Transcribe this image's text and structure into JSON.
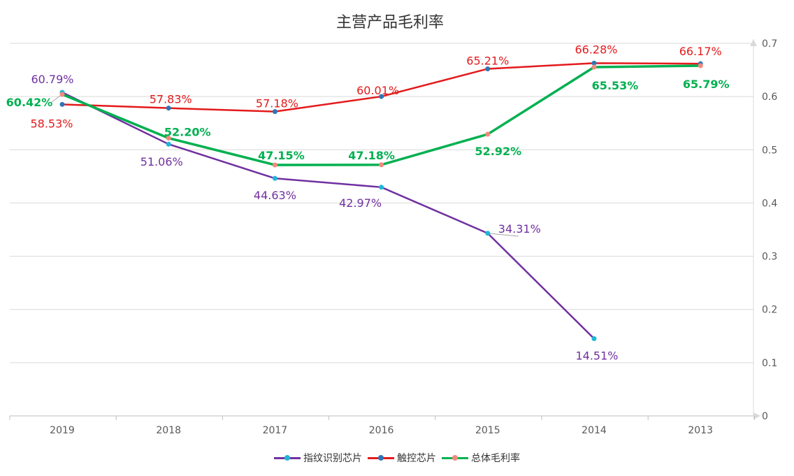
{
  "chart_data": {
    "type": "line",
    "title": "主营产品毛利率",
    "categories": [
      "2019",
      "2018",
      "2017",
      "2016",
      "2015",
      "2014",
      "2013"
    ],
    "y_axis": {
      "position": "right",
      "min": 0,
      "max": 0.7,
      "ticks": [
        "0",
        "0.1",
        "0.2",
        "0.3",
        "0.4",
        "0.5",
        "0.6",
        "0.7"
      ]
    },
    "grid": true,
    "legend": "bottom",
    "series": [
      {
        "name": "指纹识别芯片",
        "color": "#7030a0",
        "marker": "#1fb6d8",
        "label_color": "#7030a0",
        "bold": false,
        "values": [
          0.6079,
          0.5106,
          0.4463,
          0.4297,
          0.3431,
          0.1451,
          null
        ],
        "labels": [
          "60.79%",
          "51.06%",
          "44.63%",
          "42.97%",
          "34.31%",
          "14.51%",
          ""
        ]
      },
      {
        "name": "触控芯片",
        "color": "#e31a1c",
        "marker": "#2e75b6",
        "label_color": "#e31a1c",
        "bold": false,
        "values": [
          0.5853,
          0.5783,
          0.5718,
          0.6001,
          0.6521,
          0.6628,
          0.6617
        ],
        "labels": [
          "58.53%",
          "57.83%",
          "57.18%",
          "60.01%",
          "65.21%",
          "66.28%",
          "66.17%"
        ]
      },
      {
        "name": "总体毛利率",
        "color": "#00b050",
        "marker": "#f4897b",
        "label_color": "#00b050",
        "bold": true,
        "values": [
          0.6042,
          0.522,
          0.4715,
          0.4718,
          0.5292,
          0.6553,
          0.6579
        ],
        "labels": [
          "60.42%",
          "52.20%",
          "47.15%",
          "47.18%",
          "52.92%",
          "65.53%",
          "65.79%"
        ]
      }
    ]
  }
}
